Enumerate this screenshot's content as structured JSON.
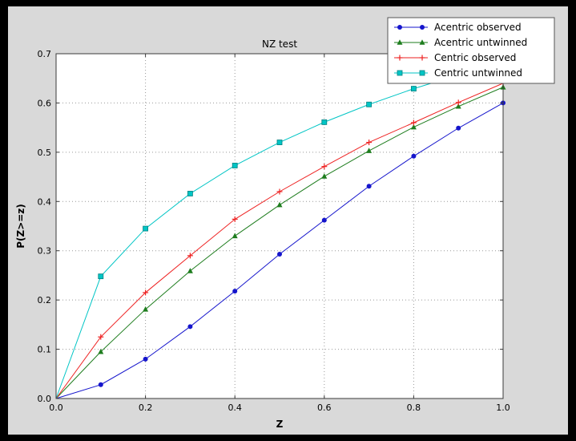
{
  "colors": {
    "window_bg": "#000000",
    "figure_bg": "#d9d9d9",
    "plot_bg": "#ffffff",
    "grid": "#999999",
    "axis": "#3a3a3a",
    "tick_text": "#000000",
    "legend_bg": "#ffffff",
    "legend_border": "#555555"
  },
  "chart_data": {
    "type": "line",
    "title": "NZ test",
    "xlabel": "Z",
    "ylabel": "P(Z>=z)",
    "xlim": [
      0.0,
      1.0
    ],
    "ylim": [
      0.0,
      0.7
    ],
    "xticks": [
      0.0,
      0.2,
      0.4,
      0.6,
      0.8,
      1.0
    ],
    "yticks": [
      0.0,
      0.1,
      0.2,
      0.3,
      0.4,
      0.5,
      0.6,
      0.7
    ],
    "grid": true,
    "grid_style": "dotted",
    "legend_position": "top-right",
    "x": [
      0.0,
      0.1,
      0.2,
      0.3,
      0.4,
      0.5,
      0.6,
      0.7,
      0.8,
      0.9,
      1.0
    ],
    "series": [
      {
        "name": "Acentric observed",
        "color": "#1515cc",
        "marker": "circle",
        "values": [
          0.0,
          0.028,
          0.08,
          0.146,
          0.218,
          0.293,
          0.362,
          0.431,
          0.492,
          0.549,
          0.6
        ]
      },
      {
        "name": "Acentric untwinned",
        "color": "#1e7d1e",
        "marker": "triangle",
        "values": [
          0.0,
          0.095,
          0.181,
          0.259,
          0.33,
          0.393,
          0.451,
          0.503,
          0.551,
          0.593,
          0.632
        ]
      },
      {
        "name": "Centric observed",
        "color": "#ee2222",
        "marker": "plus",
        "values": [
          0.0,
          0.125,
          0.215,
          0.29,
          0.364,
          0.42,
          0.471,
          0.52,
          0.56,
          0.601,
          0.64
        ]
      },
      {
        "name": "Centric untwinned",
        "color": "#00c5c5",
        "marker": "square",
        "values": [
          0.0,
          0.248,
          0.345,
          0.416,
          0.473,
          0.52,
          0.561,
          0.597,
          0.629,
          0.657,
          0.683
        ]
      }
    ]
  }
}
